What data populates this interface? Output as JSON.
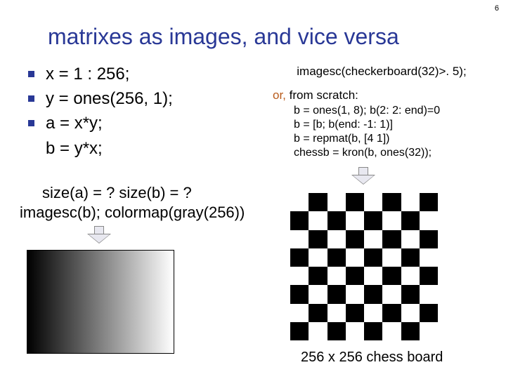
{
  "page_number": "6",
  "title": "matrixes as images, and vice versa",
  "left": {
    "l1": "x = 1 : 256;",
    "l2": "y = ones(256, 1);",
    "l3": "a = x*y;",
    "l4": "b = y*x;"
  },
  "right": {
    "top": "imagesc(checkerboard(32)>. 5);",
    "or_word": "or,",
    "from": "from scratch:",
    "c1": "b = ones(1, 8); b(2: 2: end)=0",
    "c2": "b = [b; b(end: -1: 1)]",
    "c3": "b = repmat(b, [4 1])",
    "c4": "chessb = kron(b, ones(32));"
  },
  "sizeq": "size(a) = ?    size(b) = ?",
  "imagesc_line": "imagesc(b); colormap(gray(256))",
  "chess_label": "256 x 256 chess board",
  "colors": {
    "title": "#293896",
    "bullet": "#293896",
    "or": "#b85a1a"
  }
}
